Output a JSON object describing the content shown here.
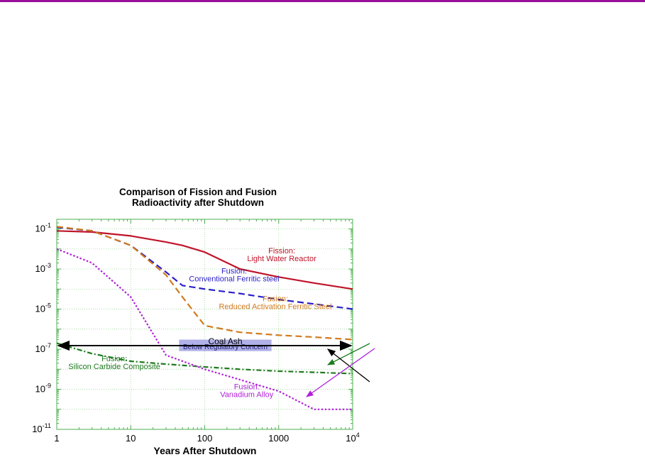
{
  "colors": {
    "top_bar": "#9a0e9c",
    "frame": "#4caf50",
    "grid": "#8fcf8f",
    "fission_lwr": "#c0142a",
    "conventional_ferritic": "#2a1fc8",
    "reduced_activation": "#d07a1c",
    "silicon_carbide": "#1e7a1e",
    "vanadium": "#b020d8",
    "coal_ash": "#000000",
    "regulatory_band": "#a8a8e6"
  },
  "chart_data": {
    "type": "line",
    "title": "Comparison of Fission and Fusion\nRadioactivity after Shutdown",
    "title_lines": [
      "Comparison of Fission and Fusion",
      "Radioactivity after Shutdown"
    ],
    "xlabel": "Years After Shutdown",
    "ylabel": "",
    "xscale": "log",
    "yscale": "log",
    "xlim": [
      1,
      10000
    ],
    "ylim": [
      1e-11,
      0.3
    ],
    "grid": true,
    "x_ticks": [
      {
        "value": 1,
        "label": "1"
      },
      {
        "value": 10,
        "label": "10"
      },
      {
        "value": 100,
        "label": "100"
      },
      {
        "value": 1000,
        "label": "1000"
      },
      {
        "value": 10000,
        "label": "10",
        "sup": "4"
      }
    ],
    "y_ticks": [
      {
        "value": 0.1,
        "label": "10",
        "sup": "-1"
      },
      {
        "value": 0.001,
        "label": "10",
        "sup": "-3"
      },
      {
        "value": 1e-05,
        "label": "10",
        "sup": "-5"
      },
      {
        "value": 1e-07,
        "label": "10",
        "sup": "-7"
      },
      {
        "value": 1e-09,
        "label": "10",
        "sup": "-9"
      },
      {
        "value": 1e-11,
        "label": "10",
        "sup": "-11"
      }
    ],
    "series": [
      {
        "name": "Fission: Light Water Reactor",
        "color_key": "fission_lwr",
        "dash": "solid",
        "x": [
          1,
          3,
          10,
          30,
          50,
          100,
          300,
          1000,
          3000,
          10000
        ],
        "y": [
          0.08,
          0.07,
          0.045,
          0.022,
          0.015,
          0.007,
          0.001,
          0.0004,
          0.0002,
          0.0001
        ]
      },
      {
        "name": "Fusion: Conventional Ferritic steel",
        "color_key": "conventional_ferritic",
        "dash": "dashed",
        "x": [
          1,
          3,
          10,
          30,
          50,
          100,
          300,
          1000,
          3000,
          10000
        ],
        "y": [
          0.12,
          0.08,
          0.015,
          0.0007,
          0.00015,
          0.0001,
          6e-05,
          3e-05,
          1.8e-05,
          1e-05
        ]
      },
      {
        "name": "Fusion: Reduced Activation Ferritic Steel",
        "color_key": "reduced_activation",
        "dash": "dashed",
        "x": [
          1,
          3,
          10,
          30,
          50,
          100,
          300,
          1000,
          3000,
          10000
        ],
        "y": [
          0.13,
          0.08,
          0.015,
          0.0005,
          4e-05,
          1.5e-06,
          7e-07,
          5e-07,
          4e-07,
          3e-07
        ]
      },
      {
        "name": "Fusion: Silicon Carbide Composite",
        "color_key": "silicon_carbide",
        "dash": "dash-dot",
        "x": [
          1,
          3,
          10,
          30,
          100,
          300,
          1000,
          3000,
          10000
        ],
        "y": [
          2e-07,
          6e-08,
          2.5e-08,
          1.8e-08,
          1.3e-08,
          1e-08,
          8e-09,
          7e-09,
          6e-09
        ]
      },
      {
        "name": "Fusion: Vanadium Alloy",
        "color_key": "vanadium",
        "dash": "dotted",
        "x": [
          1,
          3,
          10,
          30,
          100,
          300,
          1000,
          3000,
          10000
        ],
        "y": [
          0.01,
          0.002,
          4e-05,
          5e-08,
          1e-08,
          3e-09,
          8e-10,
          1e-10,
          1e-10
        ]
      }
    ],
    "reference_line": {
      "label": "Coal Ash",
      "y": 1.5e-07,
      "x": [
        1,
        10000
      ],
      "style": "double-arrow"
    },
    "band": {
      "label": "Below Regulatory Concern",
      "x": [
        45,
        800
      ],
      "y": [
        8e-08,
        3e-07
      ]
    },
    "annotations": [
      {
        "series": 0,
        "lines": [
          "Fission:",
          "Light Water Reactor"
        ],
        "at_x": 1100,
        "at_y": 0.006
      },
      {
        "series": 1,
        "lines": [
          "Fusion:",
          "Conventional Ferritic steel"
        ],
        "at_x": 250,
        "at_y": 0.0006
      },
      {
        "series": 2,
        "lines": [
          "Fusion:",
          "Reduced Activation Ferritic Steel"
        ],
        "at_x": 900,
        "at_y": 2.5e-05
      },
      {
        "series": 3,
        "lines": [
          "Fusion:",
          "Silicon Carbide Composite"
        ],
        "at_x": 6,
        "at_y": 2.5e-08
      },
      {
        "series": 4,
        "lines": [
          "Fusion:",
          "Vanadium Alloy"
        ],
        "at_x": 370,
        "at_y": 1e-09
      }
    ],
    "callout_arrows": [
      {
        "color_key": "silicon_carbide"
      },
      {
        "color_key": "coal_ash"
      },
      {
        "color_key": "vanadium"
      }
    ]
  }
}
